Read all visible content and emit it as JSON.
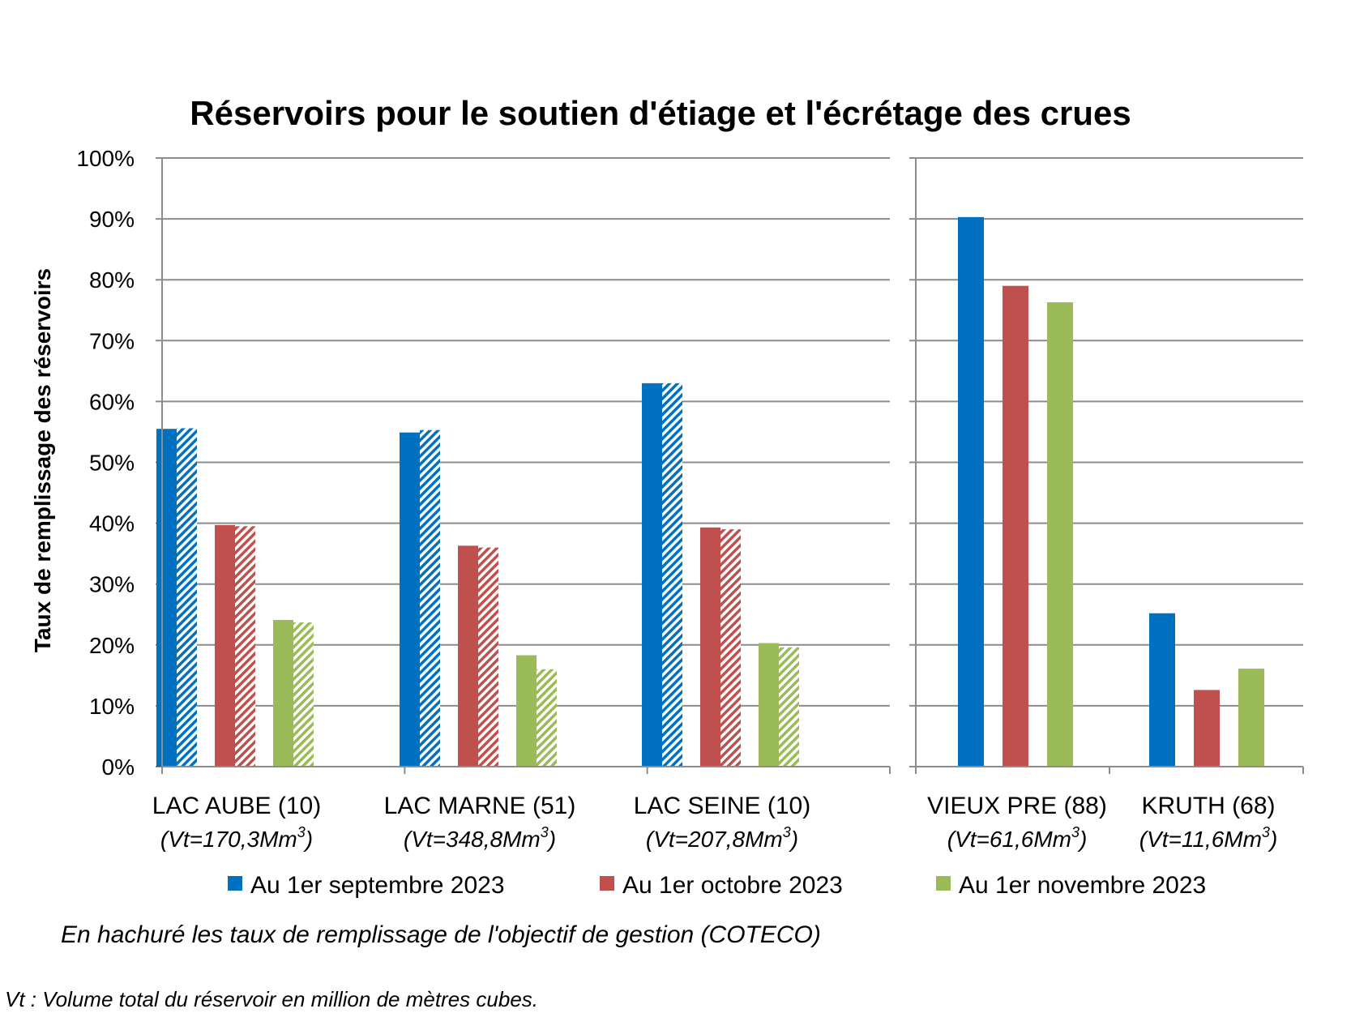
{
  "chart_data": {
    "type": "bar",
    "title": "Réservoirs pour le soutien d'étiage et l'écrétage des crues",
    "ylabel": "Taux de remplissage des réservoirs",
    "ylim": [
      0,
      100
    ],
    "y_ticks": [
      "0%",
      "10%",
      "20%",
      "30%",
      "40%",
      "50%",
      "60%",
      "70%",
      "80%",
      "90%",
      "100%"
    ],
    "grid": true,
    "legend_position": "bottom",
    "series": [
      {
        "name": "Au 1er septembre 2023",
        "color": "#0070c0"
      },
      {
        "name": "Au 1er octobre 2023",
        "color": "#c0504d"
      },
      {
        "name": "Au 1er novembre 2023",
        "color": "#9bbb59"
      }
    ],
    "panels": [
      {
        "groups": [
          {
            "label": "LAC AUBE (10)",
            "volume": "(Vt=170,3Mm",
            "volume_sup": "3",
            "volume_end": ")",
            "values": [
              55.5,
              39.7,
              24.1
            ],
            "objective": [
              55.6,
              39.5,
              23.7
            ]
          },
          {
            "label": "LAC MARNE (51)",
            "volume": "(Vt=348,8Mm",
            "volume_sup": "3",
            "volume_end": ")",
            "values": [
              54.9,
              36.3,
              18.3
            ],
            "objective": [
              55.3,
              36.0,
              16.0
            ]
          },
          {
            "label": "LAC SEINE (10)",
            "volume": "(Vt=207,8Mm",
            "volume_sup": "3",
            "volume_end": ")",
            "values": [
              63.0,
              39.3,
              20.3
            ],
            "objective": [
              63.0,
              39.0,
              19.6
            ]
          }
        ]
      },
      {
        "groups": [
          {
            "label": "VIEUX PRE (88)",
            "volume": "(Vt=61,6Mm",
            "volume_sup": "3",
            "volume_end": ")",
            "values": [
              90.3,
              79.0,
              76.3
            ]
          },
          {
            "label": "KRUTH (68)",
            "volume": "(Vt=11,6Mm",
            "volume_sup": "3",
            "volume_end": ")",
            "values": [
              25.2,
              12.6,
              16.1
            ]
          }
        ]
      }
    ],
    "annotations": [
      "En hachuré les taux de remplissage de l'objectif de gestion (COTECO)",
      "Vt : Volume total du réservoir en million de mètres cubes."
    ]
  }
}
